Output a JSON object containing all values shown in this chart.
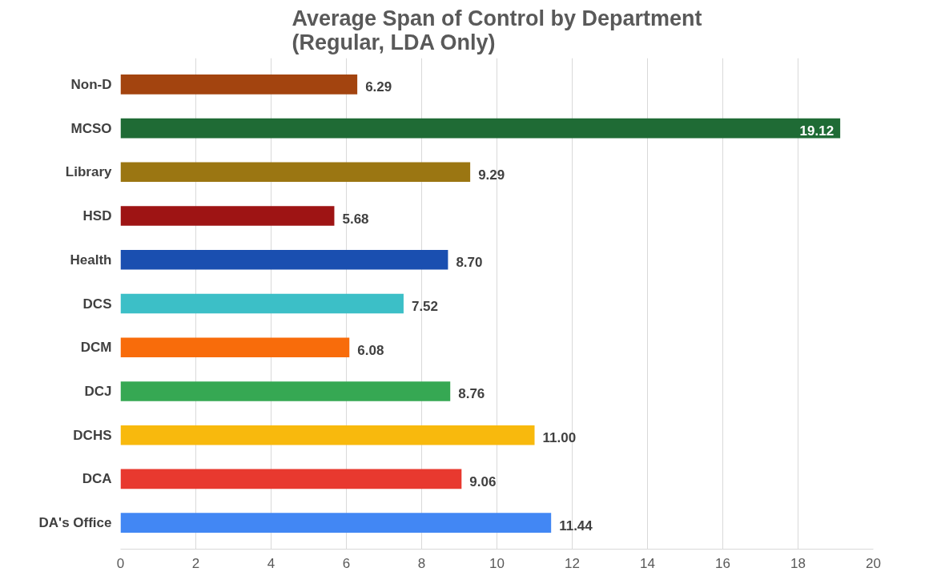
{
  "chart_data": {
    "type": "bar",
    "orientation": "horizontal",
    "title": "Average Span of Control by Department\n(Regular, LDA Only)",
    "categories": [
      "Non-D",
      "MCSO",
      "Library",
      "HSD",
      "Health",
      "DCS",
      "DCM",
      "DCJ",
      "DCHS",
      "DCA",
      "DA's Office"
    ],
    "values": [
      6.29,
      19.12,
      9.29,
      5.68,
      8.7,
      7.52,
      6.08,
      8.76,
      11.0,
      9.06,
      11.44
    ],
    "value_labels": [
      "6.29",
      "19.12",
      "9.29",
      "5.68",
      "8.70",
      "7.52",
      "6.08",
      "8.76",
      "11.00",
      "9.06",
      "11.44"
    ],
    "colors": [
      "#a3440f",
      "#1f6b35",
      "#9b7612",
      "#9e1414",
      "#1a4fb0",
      "#3cbfc7",
      "#f86c0b",
      "#36a853",
      "#f8b90d",
      "#e8392f",
      "#4287f4"
    ],
    "xlim": [
      0,
      20
    ],
    "xticks": [
      0,
      2,
      4,
      6,
      8,
      10,
      12,
      14,
      16,
      18,
      20
    ],
    "grid": "x"
  }
}
